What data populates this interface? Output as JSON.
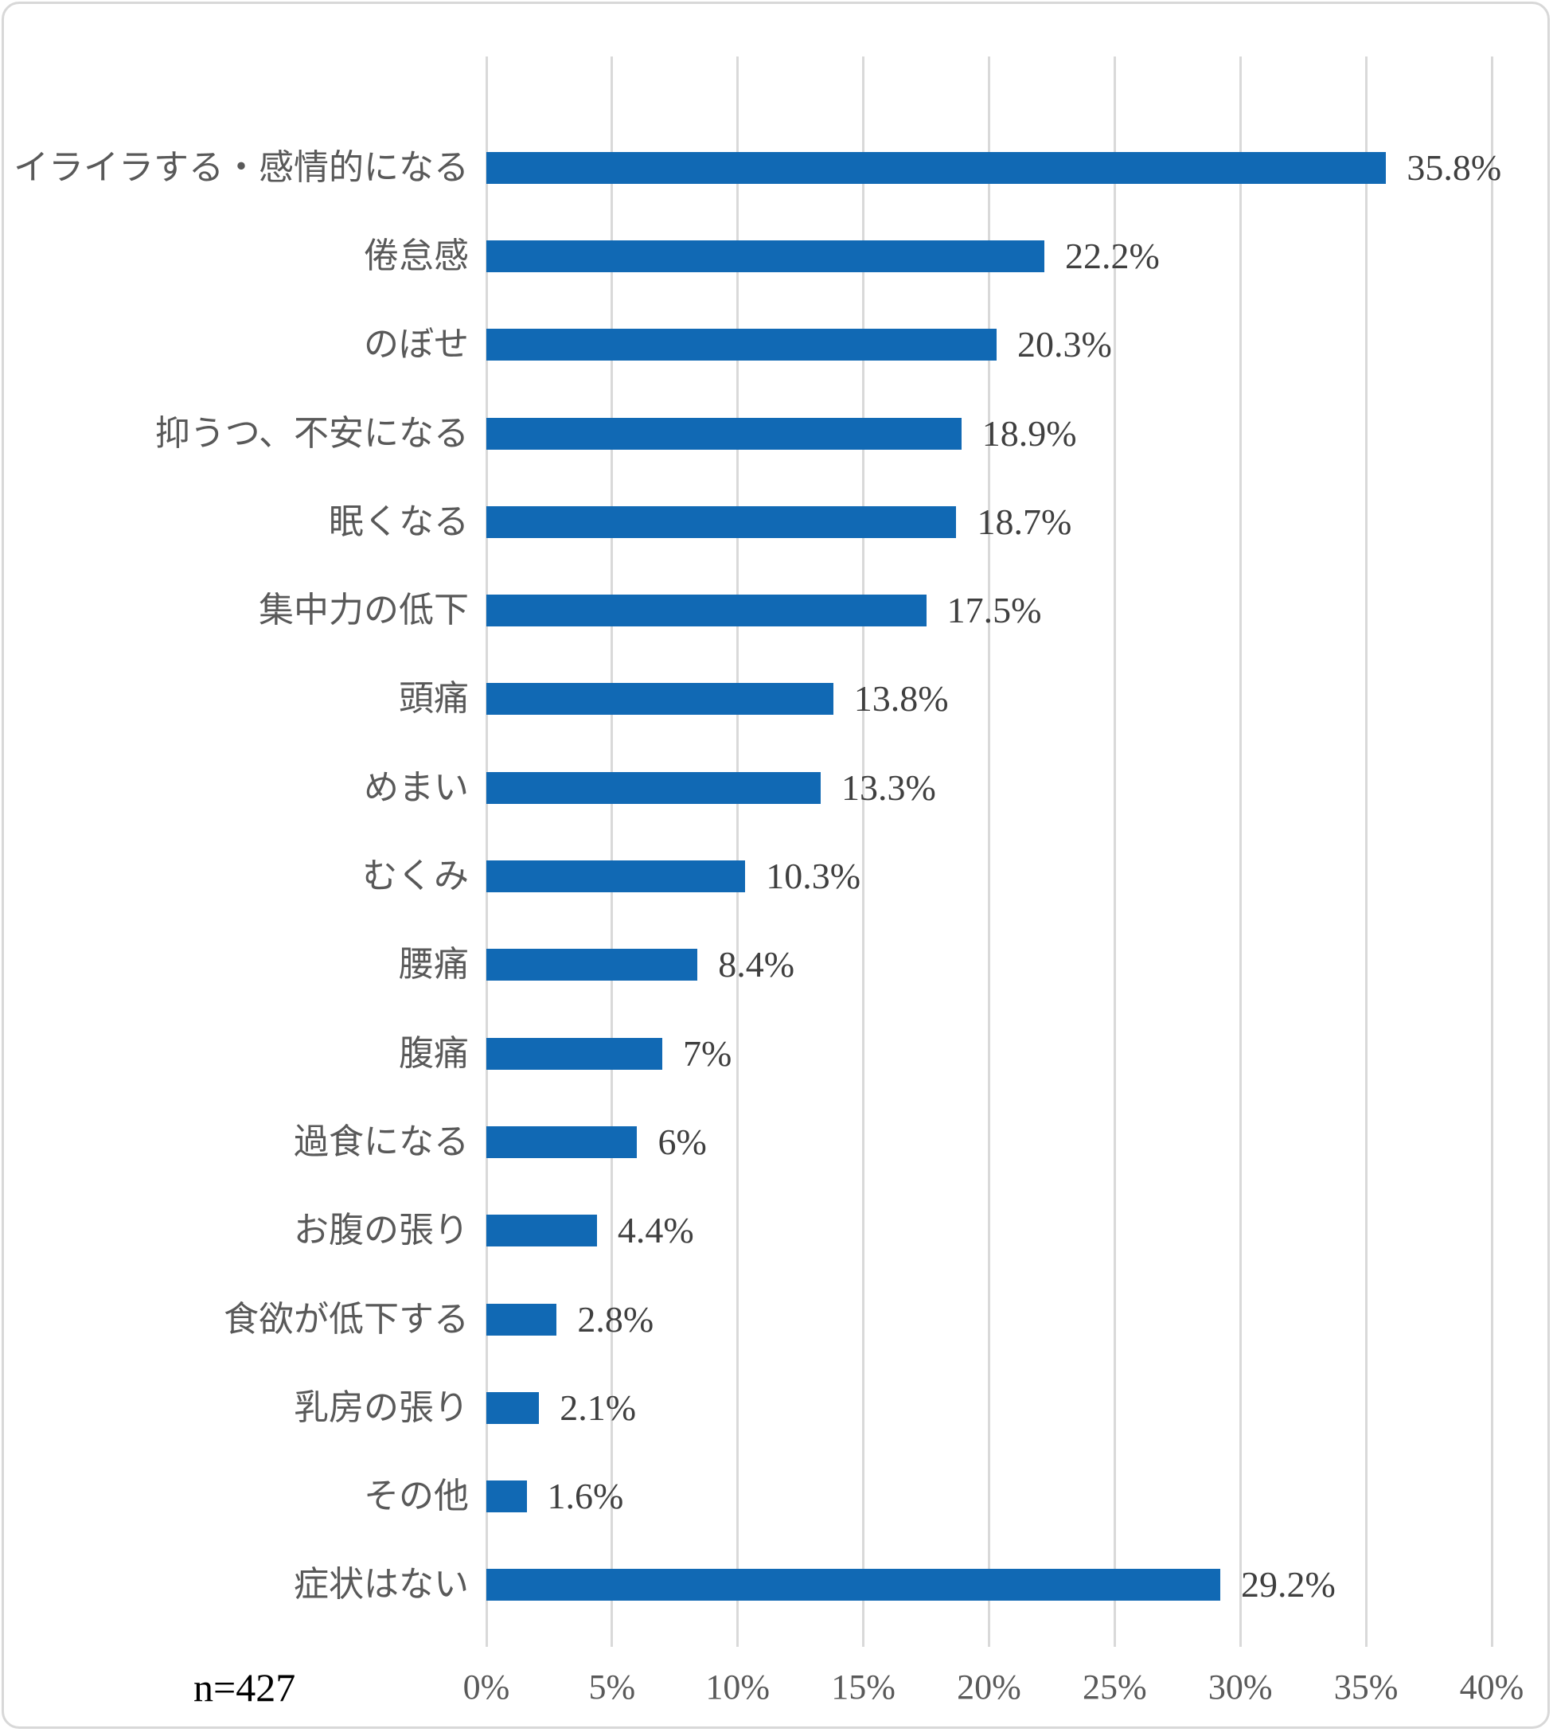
{
  "chart_data": {
    "type": "bar",
    "orientation": "horizontal",
    "title": "",
    "xlabel": "",
    "ylabel": "",
    "categories": [
      "イライラする・感情的になる",
      "倦怠感",
      "のぼせ",
      "抑うつ、不安になる",
      "眠くなる",
      "集中力の低下",
      "頭痛",
      "めまい",
      "むくみ",
      "腰痛",
      "腹痛",
      "過食になる",
      "お腹の張り",
      "食欲が低下する",
      "乳房の張り",
      "その他",
      "症状はない"
    ],
    "values": [
      35.8,
      22.2,
      20.3,
      18.9,
      18.7,
      17.5,
      13.8,
      13.3,
      10.3,
      8.4,
      7,
      6,
      4.4,
      2.8,
      2.1,
      1.6,
      29.2
    ],
    "value_labels": [
      "35.8%",
      "22.2%",
      "20.3%",
      "18.9%",
      "18.7%",
      "17.5%",
      "13.8%",
      "13.3%",
      "10.3%",
      "8.4%",
      "7%",
      "6%",
      "4.4%",
      "2.8%",
      "2.1%",
      "1.6%",
      "29.2%"
    ],
    "xlim": [
      0,
      40
    ],
    "x_tick_values": [
      0,
      5,
      10,
      15,
      20,
      25,
      30,
      35,
      40
    ],
    "x_tick_labels": [
      "0%",
      "5%",
      "10%",
      "15%",
      "20%",
      "25%",
      "30%",
      "35%",
      "40%"
    ],
    "grid": "vertical-gridlines-on",
    "legend": "none",
    "sample_size_note": "n=427",
    "colors": {
      "bar": "#1169B4",
      "gridline": "#D9D9D9",
      "category_label": "#595959",
      "value_label": "#3F3F3F",
      "tick_label": "#595959",
      "note": "#000000",
      "frame_border": "#D8D8D8",
      "background": "#FFFFFF"
    }
  }
}
